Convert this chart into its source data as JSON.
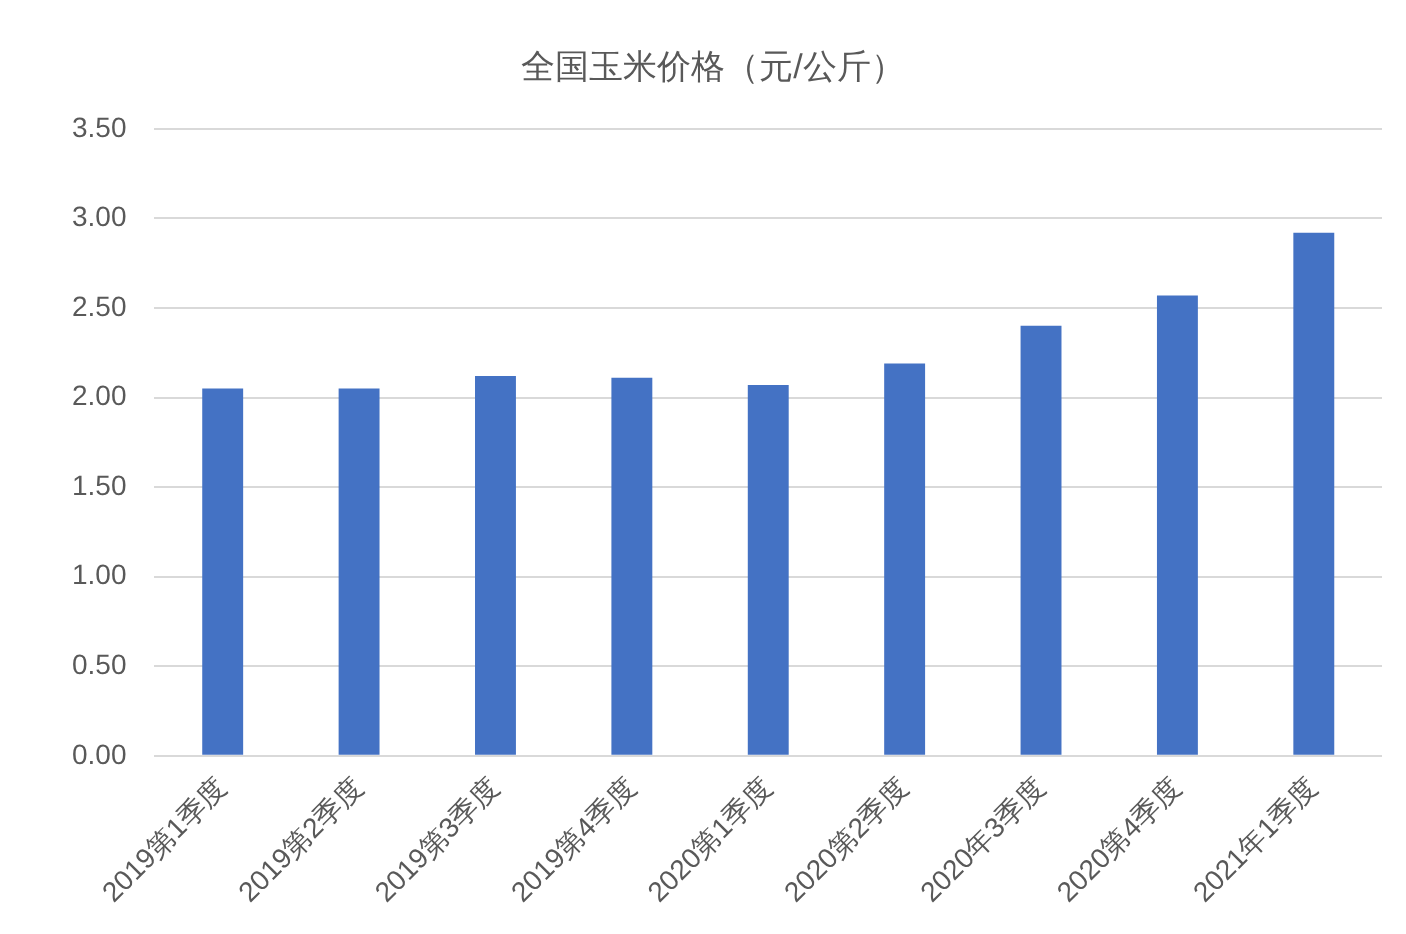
{
  "chart_data": {
    "type": "bar",
    "title": "全国玉米价格（元/公斤）",
    "categories": [
      "2019第1季度",
      "2019第2季度",
      "2019第3季度",
      "2019第4季度",
      "2020第1季度",
      "2020第2季度",
      "2020年3季度",
      "2020第4季度",
      "2021年1季度"
    ],
    "values": [
      2.05,
      2.05,
      2.12,
      2.11,
      2.07,
      2.19,
      2.4,
      2.57,
      2.92
    ],
    "color": "#4472c4",
    "ylim": [
      0,
      3.5
    ],
    "yticks": [
      {
        "value": 0,
        "label": "0.00"
      },
      {
        "value": 0.5,
        "label": "0.50"
      },
      {
        "value": 1,
        "label": "1.00"
      },
      {
        "value": 1.5,
        "label": "1.50"
      },
      {
        "value": 2,
        "label": "2.00"
      },
      {
        "value": 2.5,
        "label": "2.50"
      },
      {
        "value": 3,
        "label": "3.00"
      },
      {
        "value": 3.5,
        "label": "3.50"
      }
    ],
    "grid": "y"
  }
}
